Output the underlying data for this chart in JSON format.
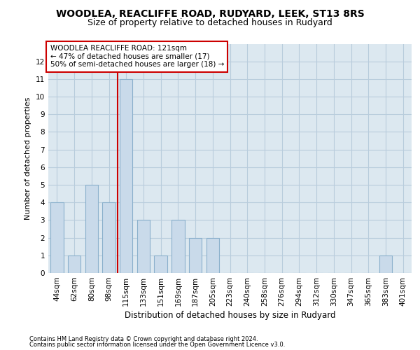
{
  "title1": "WOODLEA, REACLIFFE ROAD, RUDYARD, LEEK, ST13 8RS",
  "title2": "Size of property relative to detached houses in Rudyard",
  "xlabel": "Distribution of detached houses by size in Rudyard",
  "ylabel": "Number of detached properties",
  "categories": [
    "44sqm",
    "62sqm",
    "80sqm",
    "98sqm",
    "115sqm",
    "133sqm",
    "151sqm",
    "169sqm",
    "187sqm",
    "205sqm",
    "223sqm",
    "240sqm",
    "258sqm",
    "276sqm",
    "294sqm",
    "312sqm",
    "330sqm",
    "347sqm",
    "365sqm",
    "383sqm",
    "401sqm"
  ],
  "values": [
    4,
    1,
    5,
    4,
    11,
    3,
    1,
    3,
    2,
    2,
    0,
    0,
    0,
    0,
    0,
    0,
    0,
    0,
    0,
    1,
    0
  ],
  "bar_color": "#c9daea",
  "bar_edgecolor": "#8ab0cc",
  "vline_x": 3.5,
  "vline_color": "#cc0000",
  "annotation_text": "WOODLEA REACLIFFE ROAD: 121sqm\n← 47% of detached houses are smaller (17)\n50% of semi-detached houses are larger (18) →",
  "annotation_box_facecolor": "#ffffff",
  "annotation_box_edgecolor": "#cc0000",
  "ylim_max": 13,
  "yticks": [
    0,
    1,
    2,
    3,
    4,
    5,
    6,
    7,
    8,
    9,
    10,
    11,
    12
  ],
  "footer1": "Contains HM Land Registry data © Crown copyright and database right 2024.",
  "footer2": "Contains public sector information licensed under the Open Government Licence v3.0.",
  "bg_color": "#dce8f0",
  "grid_color": "#b8ccdc",
  "title1_fontsize": 10,
  "title2_fontsize": 9,
  "xlabel_fontsize": 8.5,
  "ylabel_fontsize": 8,
  "tick_fontsize": 7.5,
  "annotation_fontsize": 7.5,
  "footer_fontsize": 6
}
